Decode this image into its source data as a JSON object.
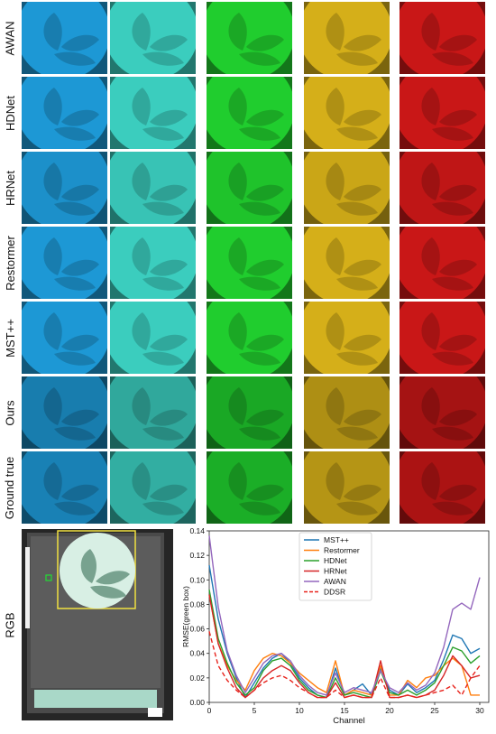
{
  "figure": {
    "row_labels": [
      "AWAN",
      "HDNet",
      "HRNet",
      "Restormer",
      "MST++",
      "Ours",
      "Ground true"
    ],
    "column_tints": [
      "#1fa0e0",
      "#3ed8c8",
      "#22d830",
      "#e0b81a",
      "#d41818"
    ],
    "rgb_label": "RGB"
  },
  "chart_data": {
    "type": "line",
    "xlabel": "Channel",
    "ylabel": "RMSE(green box)",
    "xlim": [
      0,
      31
    ],
    "ylim": [
      0,
      0.14
    ],
    "xticks": [
      0,
      5,
      10,
      15,
      20,
      25,
      30
    ],
    "yticks": [
      0.0,
      0.02,
      0.04,
      0.06,
      0.08,
      0.1,
      0.12,
      0.14
    ],
    "x": [
      0,
      1,
      2,
      3,
      4,
      5,
      6,
      7,
      8,
      9,
      10,
      11,
      12,
      13,
      14,
      15,
      16,
      17,
      18,
      19,
      20,
      21,
      22,
      23,
      24,
      25,
      26,
      27,
      28,
      29,
      30
    ],
    "legend_position": "top-center",
    "series": [
      {
        "name": "MST++",
        "color": "#1f77b4",
        "dash": "",
        "values": [
          0.112,
          0.068,
          0.04,
          0.02,
          0.004,
          0.016,
          0.028,
          0.036,
          0.04,
          0.032,
          0.02,
          0.012,
          0.006,
          0.004,
          0.028,
          0.006,
          0.01,
          0.015,
          0.006,
          0.028,
          0.01,
          0.006,
          0.015,
          0.008,
          0.012,
          0.018,
          0.035,
          0.055,
          0.052,
          0.04,
          0.044
        ]
      },
      {
        "name": "Restormer",
        "color": "#ff7f0e",
        "dash": "",
        "values": [
          0.088,
          0.048,
          0.03,
          0.018,
          0.01,
          0.026,
          0.036,
          0.04,
          0.038,
          0.032,
          0.024,
          0.018,
          0.012,
          0.008,
          0.034,
          0.006,
          0.01,
          0.008,
          0.006,
          0.03,
          0.006,
          0.006,
          0.018,
          0.012,
          0.02,
          0.022,
          0.03,
          0.036,
          0.03,
          0.006,
          0.006
        ]
      },
      {
        "name": "HDNet",
        "color": "#2ca02c",
        "dash": "",
        "values": [
          0.092,
          0.052,
          0.032,
          0.016,
          0.006,
          0.012,
          0.026,
          0.034,
          0.036,
          0.03,
          0.018,
          0.01,
          0.006,
          0.004,
          0.02,
          0.006,
          0.008,
          0.006,
          0.004,
          0.026,
          0.008,
          0.006,
          0.01,
          0.006,
          0.01,
          0.016,
          0.03,
          0.045,
          0.042,
          0.032,
          0.038
        ]
      },
      {
        "name": "HRNet",
        "color": "#d62728",
        "dash": "",
        "values": [
          0.088,
          0.048,
          0.028,
          0.012,
          0.004,
          0.01,
          0.02,
          0.026,
          0.03,
          0.026,
          0.016,
          0.008,
          0.004,
          0.004,
          0.016,
          0.004,
          0.006,
          0.004,
          0.004,
          0.034,
          0.004,
          0.004,
          0.006,
          0.004,
          0.006,
          0.01,
          0.022,
          0.038,
          0.03,
          0.02,
          0.022
        ]
      },
      {
        "name": "AWAN",
        "color": "#9467bd",
        "dash": "",
        "values": [
          0.136,
          0.078,
          0.042,
          0.022,
          0.008,
          0.02,
          0.032,
          0.038,
          0.04,
          0.034,
          0.022,
          0.014,
          0.008,
          0.006,
          0.024,
          0.008,
          0.012,
          0.01,
          0.008,
          0.026,
          0.012,
          0.008,
          0.016,
          0.01,
          0.014,
          0.024,
          0.045,
          0.076,
          0.081,
          0.076,
          0.102
        ]
      },
      {
        "name": "DDSR",
        "color": "#e8231c",
        "dash": "5,3",
        "values": [
          0.058,
          0.03,
          0.018,
          0.01,
          0.004,
          0.01,
          0.016,
          0.02,
          0.022,
          0.018,
          0.012,
          0.008,
          0.004,
          0.004,
          0.01,
          0.004,
          0.006,
          0.004,
          0.004,
          0.02,
          0.004,
          0.004,
          0.006,
          0.004,
          0.006,
          0.008,
          0.01,
          0.014,
          0.006,
          0.02,
          0.03
        ]
      }
    ]
  }
}
